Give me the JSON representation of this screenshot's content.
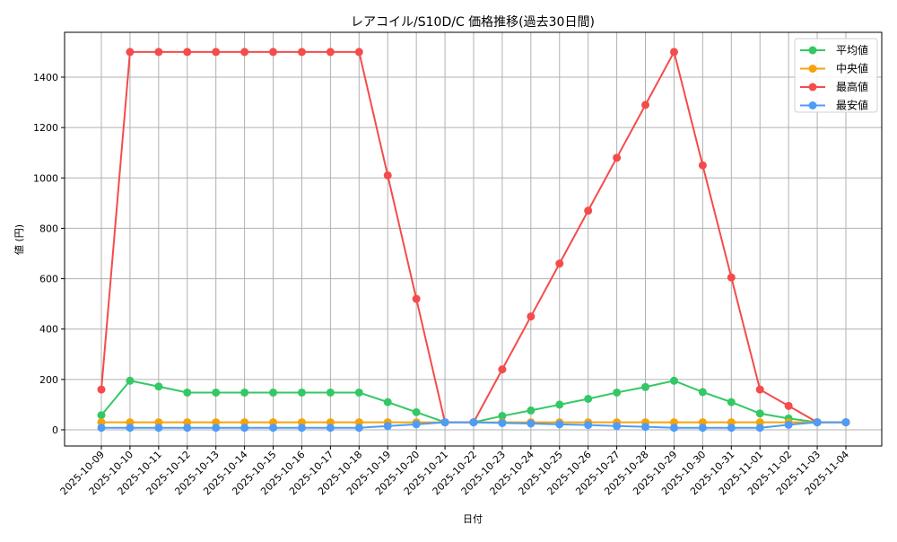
{
  "chart_data": {
    "type": "line",
    "title": "レアコイル/S10D/C 価格推移(過去30日間)",
    "xlabel": "日付",
    "ylabel": "値 (円)",
    "ylim": [
      -60,
      1575
    ],
    "yticks": [
      0,
      200,
      400,
      600,
      800,
      1000,
      1200,
      1400
    ],
    "grid": true,
    "legend_position": "upper right",
    "x": [
      "2025-10-09",
      "2025-10-10",
      "2025-10-11",
      "2025-10-12",
      "2025-10-13",
      "2025-10-14",
      "2025-10-15",
      "2025-10-16",
      "2025-10-17",
      "2025-10-18",
      "2025-10-19",
      "2025-10-20",
      "2025-10-21",
      "2025-10-22",
      "2025-10-23",
      "2025-10-24",
      "2025-10-25",
      "2025-10-26",
      "2025-10-27",
      "2025-10-28",
      "2025-10-29",
      "2025-10-30",
      "2025-10-31",
      "2025-11-01",
      "2025-11-02",
      "2025-11-03",
      "2025-11-04"
    ],
    "series": [
      {
        "name": "平均値",
        "color": "#33c865",
        "values": [
          58,
          195,
          172,
          148,
          148,
          148,
          148,
          148,
          148,
          148,
          110,
          70,
          30,
          30,
          55,
          77,
          100,
          123,
          148,
          170,
          195,
          150,
          110,
          65,
          45,
          30,
          30
        ]
      },
      {
        "name": "中央値",
        "color": "#f5a30a",
        "values": [
          30,
          30,
          30,
          30,
          30,
          30,
          30,
          30,
          30,
          30,
          30,
          30,
          30,
          30,
          30,
          30,
          30,
          30,
          30,
          30,
          30,
          30,
          30,
          30,
          30,
          30,
          30
        ]
      },
      {
        "name": "最高値",
        "color": "#f54b4b",
        "values": [
          160,
          1500,
          1500,
          1500,
          1500,
          1500,
          1500,
          1500,
          1500,
          1500,
          1010,
          520,
          30,
          30,
          240,
          450,
          660,
          870,
          1080,
          1290,
          1500,
          1050,
          605,
          160,
          95,
          30,
          30
        ]
      },
      {
        "name": "最安値",
        "color": "#4d9cf7",
        "values": [
          8,
          8,
          8,
          8,
          8,
          8,
          8,
          8,
          8,
          8,
          15,
          22,
          30,
          30,
          27,
          25,
          22,
          19,
          15,
          12,
          8,
          8,
          8,
          8,
          20,
          30,
          30
        ]
      }
    ]
  }
}
